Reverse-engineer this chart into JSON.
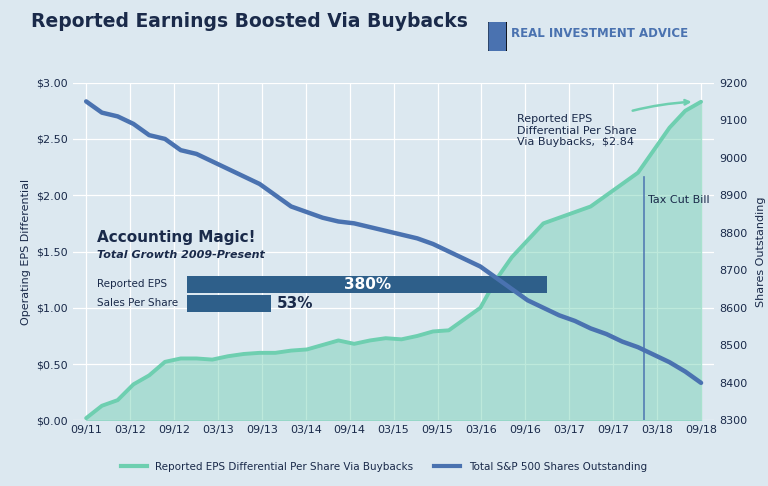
{
  "title": "Reported Earnings Boosted Via Buybacks",
  "background_color": "#dce8f0",
  "plot_bg_color": "#dce8f0",
  "grid_color": "#ffffff",
  "ylabel_left": "Operating EPS Differential",
  "ylabel_right": "Shares Outstanding",
  "x_labels": [
    "09/11",
    "03/12",
    "09/12",
    "03/13",
    "09/13",
    "03/14",
    "09/14",
    "03/15",
    "09/15",
    "03/16",
    "09/16",
    "03/17",
    "09/17",
    "03/18",
    "09/18"
  ],
  "ylim_left": [
    0.0,
    3.0
  ],
  "ylim_right": [
    8300,
    9200
  ],
  "eps_data": [
    0.02,
    0.13,
    0.18,
    0.32,
    0.4,
    0.52,
    0.55,
    0.55,
    0.54,
    0.57,
    0.59,
    0.6,
    0.6,
    0.62,
    0.63,
    0.67,
    0.71,
    0.68,
    0.71,
    0.73,
    0.72,
    0.75,
    0.79,
    0.8,
    0.9,
    1.0,
    1.25,
    1.45,
    1.6,
    1.75,
    1.8,
    1.85,
    1.9,
    2.0,
    2.1,
    2.2,
    2.4,
    2.6,
    2.75,
    2.83
  ],
  "shares_data": [
    9150,
    9120,
    9110,
    9090,
    9060,
    9050,
    9020,
    9010,
    8990,
    8970,
    8950,
    8930,
    8900,
    8870,
    8855,
    8840,
    8830,
    8825,
    8815,
    8805,
    8795,
    8785,
    8770,
    8750,
    8730,
    8710,
    8680,
    8650,
    8620,
    8600,
    8580,
    8565,
    8545,
    8530,
    8510,
    8495,
    8475,
    8455,
    8430,
    8400
  ],
  "eps_color": "#6ecfb0",
  "eps_fill_color": "#6ecfb0",
  "shares_color": "#4a72b0",
  "bar_color": "#2e5f8a",
  "annotation_arrow_color": "#6ecfb0",
  "tax_cut_line_color": "#4a72b0",
  "logo_shield_color": "#4a72b0",
  "text_dark": "#1a2a4a",
  "logo_text": "REAL INVESTMENT ADVICE"
}
